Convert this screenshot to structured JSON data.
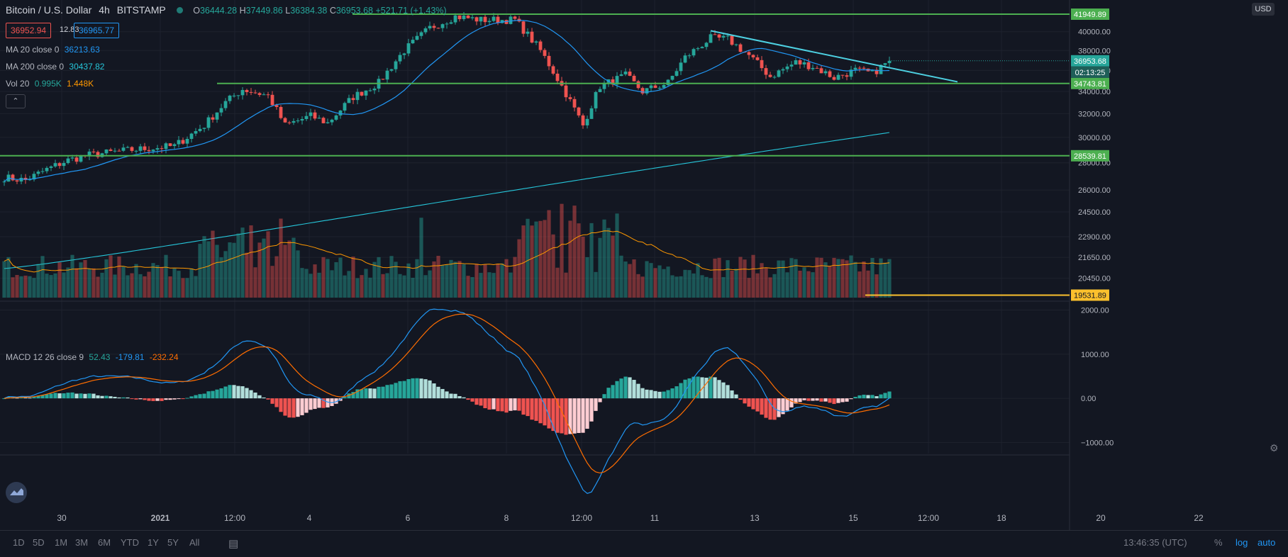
{
  "header": {
    "symbol": "Bitcoin / U.S. Dollar",
    "interval": "4h",
    "exchange": "BITSTAMP",
    "open_label": "O",
    "open": "36444.28",
    "high_label": "H",
    "high": "37449.86",
    "low_label": "L",
    "low": "36384.38",
    "close_label": "C",
    "close": "36953.68",
    "change": "+521.71 (+1.43%)",
    "bid": "36952.94",
    "spread": "12.83",
    "ask": "36965.77"
  },
  "indicators": {
    "ma20_label": "MA 20 close 0",
    "ma20_value": "36213.63",
    "ma200_label": "MA 200 close 0",
    "ma200_value": "30437.82",
    "vol_label": "Vol 20",
    "vol_value1": "0.995K",
    "vol_value2": "1.448K",
    "macd_label": "MACD 12 26 close 9",
    "macd_hist": "52.43",
    "macd_line": "-179.81",
    "macd_signal": "-232.24"
  },
  "currency_badge": "USD",
  "bottom_bar": {
    "ranges": [
      "1D",
      "5D",
      "1M",
      "3M",
      "6M",
      "YTD",
      "1Y",
      "5Y",
      "All"
    ],
    "time": "13:46:35 (UTC)",
    "percent": "%",
    "log": "log",
    "auto": "auto"
  },
  "colors": {
    "bg": "#131722",
    "up": "#26a69a",
    "down": "#ef5350",
    "ma20": "#2196f3",
    "ma200": "#26c6da",
    "level": "#4caf50",
    "trend": "#4dd0e1",
    "vol_ma": "#ff9800",
    "macd": "#2196f3",
    "signal": "#ff6d00",
    "volume_line": "#fbc02d"
  },
  "chart_data": [
    {
      "type": "candlestick",
      "title": "Bitcoin / U.S. Dollar 4h BITSTAMP",
      "x_ticks": [
        "30",
        "2021",
        "12:00",
        "4",
        "6",
        "8",
        "12:00",
        "11",
        "13",
        "15",
        "12:00",
        "18",
        "20",
        "22"
      ],
      "price_ticks": [
        "40000.00",
        "38000.00",
        "36000.00",
        "34000.00",
        "32000.00",
        "30000.00",
        "28000.00",
        "26000.00",
        "24500.00",
        "22900.00",
        "21650.00",
        "20450.00"
      ],
      "scale": "log",
      "ylim": [
        19400,
        43600
      ],
      "levels": [
        {
          "label": "41949.89",
          "value": 41949.89
        },
        {
          "label": "34743.81",
          "value": 34743.81
        },
        {
          "label": "28539.81",
          "value": 28539.81
        },
        {
          "label": "19531.89",
          "value": 19531.89
        }
      ],
      "last_price_label": "36953.68",
      "countdown": "02:13:25",
      "anchors": [
        {
          "i": 0,
          "c": 26900
        },
        {
          "i": 5,
          "c": 26700
        },
        {
          "i": 10,
          "c": 27500
        },
        {
          "i": 15,
          "c": 28200
        },
        {
          "i": 20,
          "c": 28600
        },
        {
          "i": 30,
          "c": 29000
        },
        {
          "i": 40,
          "c": 29300
        },
        {
          "i": 47,
          "c": 31000
        },
        {
          "i": 52,
          "c": 33000
        },
        {
          "i": 56,
          "c": 34200
        },
        {
          "i": 62,
          "c": 33600
        },
        {
          "i": 66,
          "c": 31000
        },
        {
          "i": 72,
          "c": 31800
        },
        {
          "i": 76,
          "c": 31200
        },
        {
          "i": 82,
          "c": 33500
        },
        {
          "i": 88,
          "c": 34800
        },
        {
          "i": 94,
          "c": 38000
        },
        {
          "i": 100,
          "c": 40400
        },
        {
          "i": 106,
          "c": 41700
        },
        {
          "i": 112,
          "c": 41300
        },
        {
          "i": 120,
          "c": 41300
        },
        {
          "i": 126,
          "c": 38000
        },
        {
          "i": 130,
          "c": 35200
        },
        {
          "i": 136,
          "c": 31000
        },
        {
          "i": 140,
          "c": 34500
        },
        {
          "i": 146,
          "c": 35500
        },
        {
          "i": 150,
          "c": 34000
        },
        {
          "i": 156,
          "c": 34800
        },
        {
          "i": 160,
          "c": 37300
        },
        {
          "i": 166,
          "c": 39300
        },
        {
          "i": 170,
          "c": 39200
        },
        {
          "i": 175,
          "c": 37500
        },
        {
          "i": 180,
          "c": 35400
        },
        {
          "i": 186,
          "c": 36800
        },
        {
          "i": 190,
          "c": 36400
        },
        {
          "i": 195,
          "c": 35300
        },
        {
          "i": 200,
          "c": 36000
        },
        {
          "i": 204,
          "c": 35700
        },
        {
          "i": 208,
          "c": 36950
        }
      ]
    },
    {
      "type": "line",
      "title": "MACD 12 26 close 9",
      "y_ticks": [
        "2000.00",
        "1000.00",
        "0.00",
        "−1000.00"
      ],
      "ylim": [
        -1250,
        2200
      ]
    }
  ]
}
